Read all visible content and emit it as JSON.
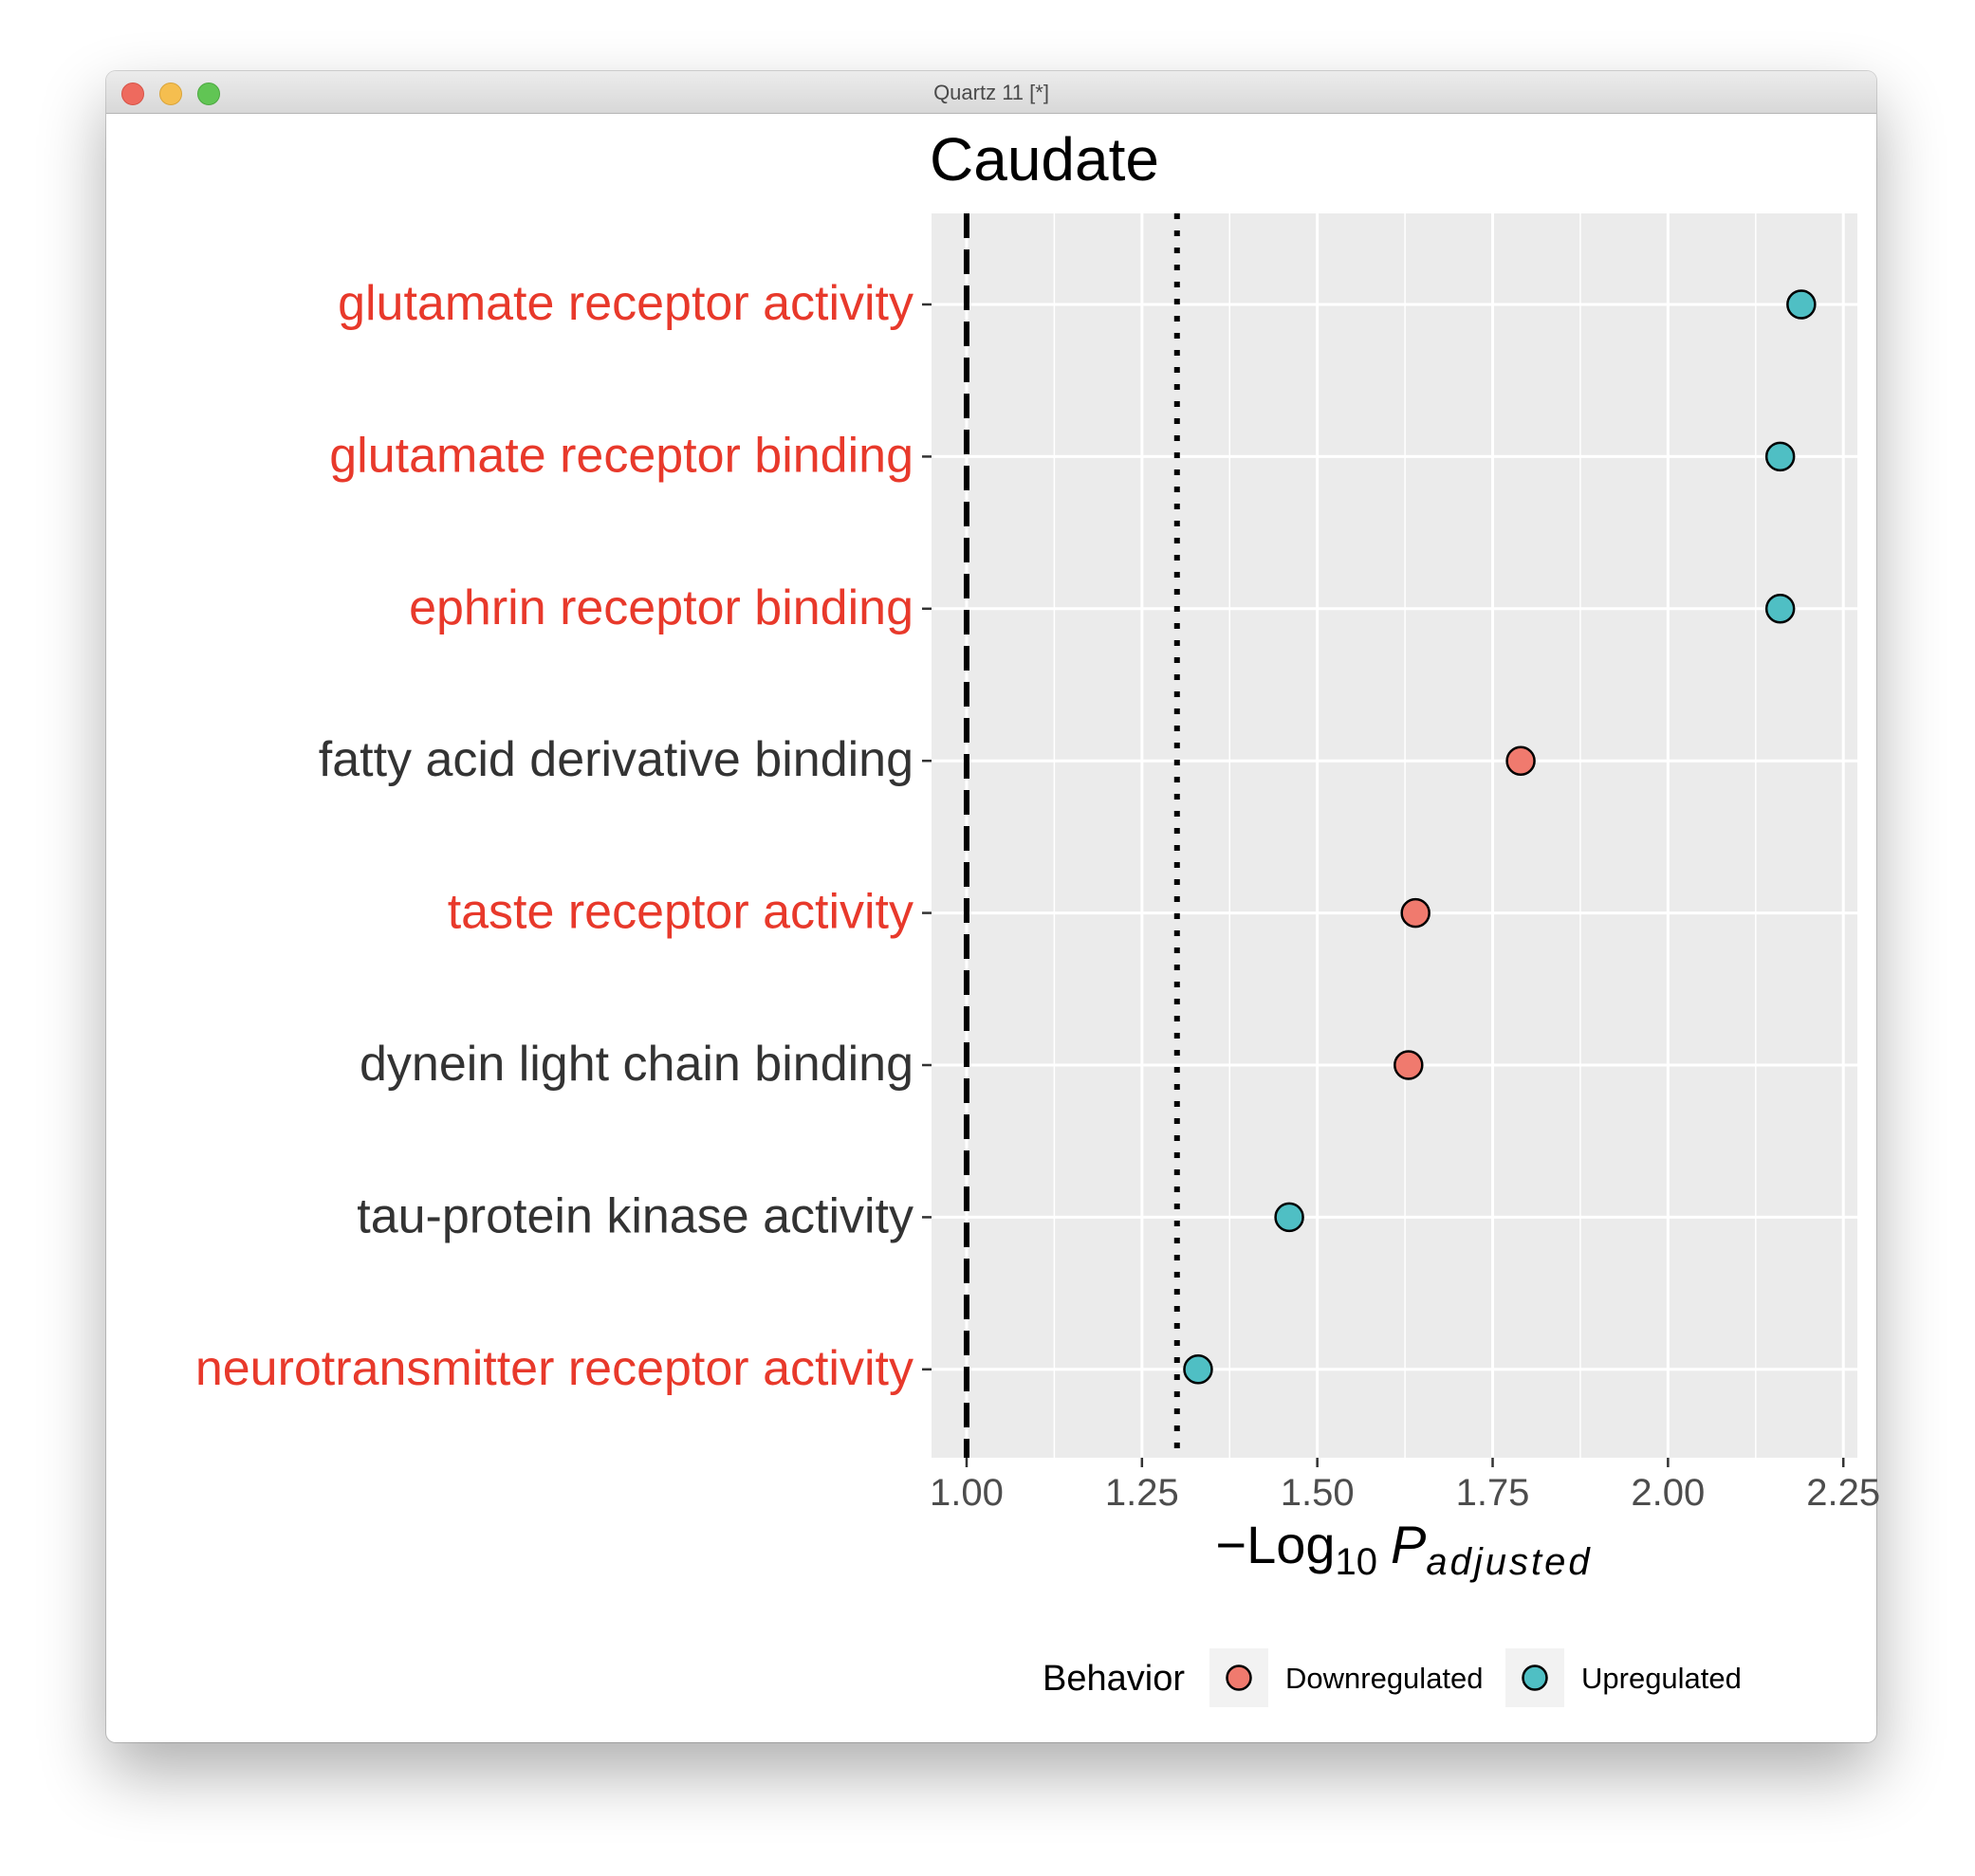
{
  "window": {
    "title": "Quartz 11 [*]"
  },
  "colors": {
    "downregulated": "#F07A6E",
    "upregulated": "#4FBFC4",
    "highlight_label": "#E8392B",
    "normal_label": "#333333",
    "panel": "#EBEBEB"
  },
  "chart_data": {
    "type": "scatter",
    "title": "Caudate",
    "xlabel": {
      "prefix": "−Log",
      "subscript": "10",
      "variable": "P",
      "variable_subscript": "adjusted"
    },
    "xlim": [
      0.95,
      2.27
    ],
    "xticks": [
      1.0,
      1.25,
      1.5,
      1.75,
      2.0,
      2.25
    ],
    "xtick_labels": [
      "1.00",
      "1.25",
      "1.50",
      "1.75",
      "2.00",
      "2.25"
    ],
    "grid": true,
    "reference_lines": [
      {
        "x": 1.0,
        "style": "dashed"
      },
      {
        "x": 1.3,
        "style": "dotted"
      }
    ],
    "categories": [
      {
        "label": "glutamate receptor activity",
        "highlight": true
      },
      {
        "label": "glutamate receptor binding",
        "highlight": true
      },
      {
        "label": "ephrin receptor binding",
        "highlight": true
      },
      {
        "label": "fatty acid derivative binding",
        "highlight": false
      },
      {
        "label": "taste receptor activity",
        "highlight": true
      },
      {
        "label": "dynein light chain binding",
        "highlight": false
      },
      {
        "label": "tau-protein kinase activity",
        "highlight": false
      },
      {
        "label": "neurotransmitter receptor activity",
        "highlight": true
      }
    ],
    "points": [
      {
        "category": "glutamate receptor activity",
        "x": 2.19,
        "group": "Upregulated"
      },
      {
        "category": "glutamate receptor binding",
        "x": 2.16,
        "group": "Upregulated"
      },
      {
        "category": "ephrin receptor binding",
        "x": 2.16,
        "group": "Upregulated"
      },
      {
        "category": "fatty acid derivative binding",
        "x": 1.79,
        "group": "Downregulated"
      },
      {
        "category": "taste receptor activity",
        "x": 1.64,
        "group": "Downregulated"
      },
      {
        "category": "dynein light chain binding",
        "x": 1.63,
        "group": "Downregulated"
      },
      {
        "category": "tau-protein kinase activity",
        "x": 1.46,
        "group": "Upregulated"
      },
      {
        "category": "neurotransmitter receptor activity",
        "x": 1.33,
        "group": "Upregulated"
      }
    ],
    "legend": {
      "title": "Behavior",
      "position": "bottom",
      "entries": [
        {
          "label": "Downregulated",
          "group": "Downregulated"
        },
        {
          "label": "Upregulated",
          "group": "Upregulated"
        }
      ]
    }
  }
}
